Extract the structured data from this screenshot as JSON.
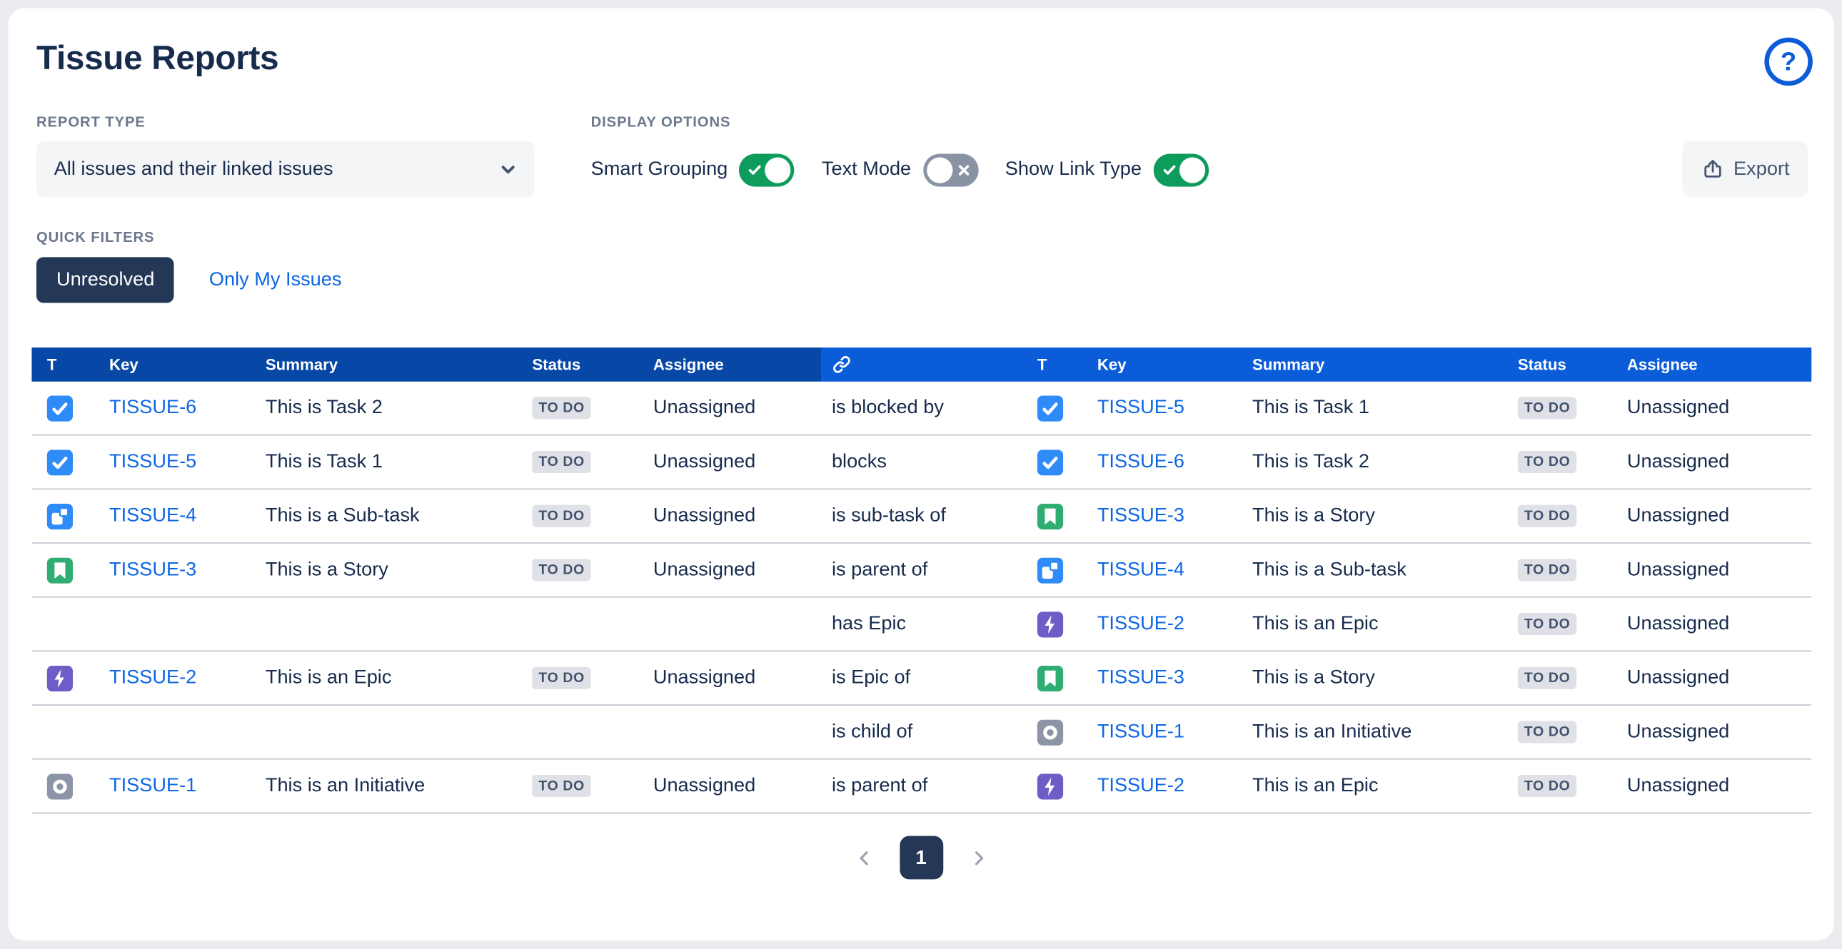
{
  "title": "Tissue Reports",
  "help": {
    "glyph": "?"
  },
  "report_type": {
    "label": "REPORT TYPE",
    "selected": "All issues and their linked issues"
  },
  "display_options": {
    "label": "DISPLAY OPTIONS",
    "toggles": [
      {
        "label": "Smart Grouping",
        "state": "on"
      },
      {
        "label": "Text Mode",
        "state": "off"
      },
      {
        "label": "Show Link Type",
        "state": "on"
      }
    ]
  },
  "export_button": {
    "label": "Export"
  },
  "quick_filters": {
    "label": "QUICK FILTERS",
    "filters": [
      {
        "label": "Unresolved",
        "active": true
      },
      {
        "label": "Only My Issues",
        "active": false
      }
    ]
  },
  "table": {
    "headers": [
      "T",
      "Key",
      "Summary",
      "Status",
      "Assignee",
      "T",
      "Key",
      "Summary",
      "Status",
      "Assignee"
    ],
    "link_column_icon": "link-icon",
    "rows": [
      {
        "left": {
          "type": "task",
          "key": "TISSUE-6",
          "summary": "This is Task 2",
          "status": "TO DO",
          "assignee": "Unassigned"
        },
        "link": "is blocked by",
        "right": {
          "type": "task",
          "key": "TISSUE-5",
          "summary": "This is Task 1",
          "status": "TO DO",
          "assignee": "Unassigned"
        }
      },
      {
        "left": {
          "type": "task",
          "key": "TISSUE-5",
          "summary": "This is Task 1",
          "status": "TO DO",
          "assignee": "Unassigned"
        },
        "link": "blocks",
        "right": {
          "type": "task",
          "key": "TISSUE-6",
          "summary": "This is Task 2",
          "status": "TO DO",
          "assignee": "Unassigned"
        }
      },
      {
        "left": {
          "type": "subtask",
          "key": "TISSUE-4",
          "summary": "This is a Sub-task",
          "status": "TO DO",
          "assignee": "Unassigned"
        },
        "link": "is sub-task of",
        "right": {
          "type": "story",
          "key": "TISSUE-3",
          "summary": "This is a Story",
          "status": "TO DO",
          "assignee": "Unassigned"
        }
      },
      {
        "left": {
          "type": "story",
          "key": "TISSUE-3",
          "summary": "This is a Story",
          "status": "TO DO",
          "assignee": "Unassigned"
        },
        "link": "is parent of",
        "right": {
          "type": "subtask",
          "key": "TISSUE-4",
          "summary": "This is a Sub-task",
          "status": "TO DO",
          "assignee": "Unassigned"
        }
      },
      {
        "left": null,
        "link": "has Epic",
        "right": {
          "type": "epic",
          "key": "TISSUE-2",
          "summary": "This is an Epic",
          "status": "TO DO",
          "assignee": "Unassigned"
        }
      },
      {
        "left": {
          "type": "epic",
          "key": "TISSUE-2",
          "summary": "This is an Epic",
          "status": "TO DO",
          "assignee": "Unassigned"
        },
        "link": "is Epic of",
        "right": {
          "type": "story",
          "key": "TISSUE-3",
          "summary": "This is a Story",
          "status": "TO DO",
          "assignee": "Unassigned"
        }
      },
      {
        "left": null,
        "link": "is child of",
        "right": {
          "type": "initiative",
          "key": "TISSUE-1",
          "summary": "This is an Initiative",
          "status": "TO DO",
          "assignee": "Unassigned"
        }
      },
      {
        "left": {
          "type": "initiative",
          "key": "TISSUE-1",
          "summary": "This is an Initiative",
          "status": "TO DO",
          "assignee": "Unassigned"
        },
        "link": "is parent of",
        "right": {
          "type": "epic",
          "key": "TISSUE-2",
          "summary": "This is an Epic",
          "status": "TO DO",
          "assignee": "Unassigned"
        }
      }
    ]
  },
  "pagination": {
    "current": "1"
  },
  "colors": {
    "header_left_bg": "#0747A6",
    "header_right_bg": "#0B5CD9",
    "key_link": "#0C66E4",
    "toggle_on": "#0E9C5D",
    "toggle_off": "#8993A4",
    "status_badge_bg": "#DFE1E6",
    "status_badge_text": "#42526E",
    "navy_button_bg": "#243757",
    "help_icon": "#0C5CD9",
    "issue_types": {
      "task": "#2F8BF7",
      "subtask": "#2F8BF7",
      "story": "#2FAD73",
      "epic": "#6E5DC6",
      "initiative": "#8C95A6"
    }
  }
}
